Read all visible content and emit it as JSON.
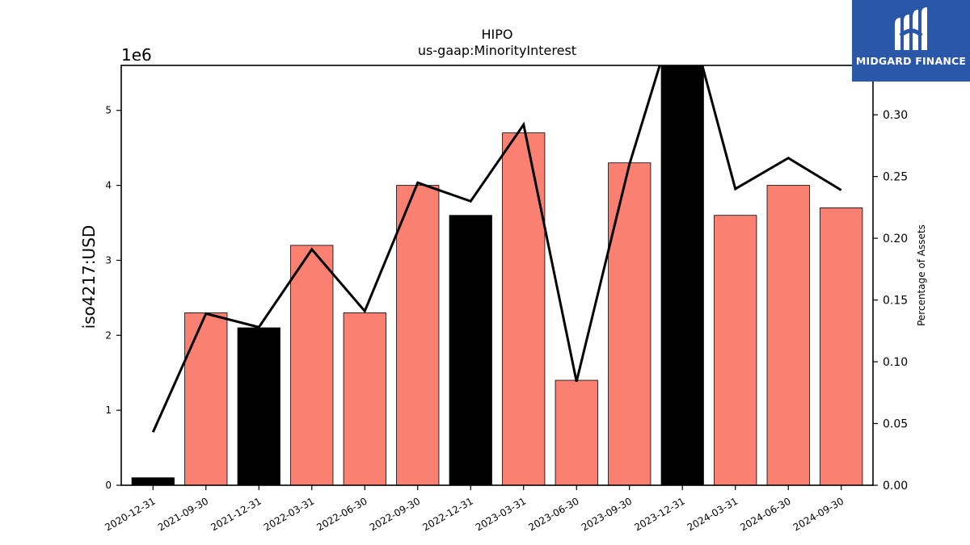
{
  "chart_data": {
    "type": "bar",
    "title": "HIPO",
    "subtitle": "us-gaap:MinorityInterest",
    "ylabel": "iso4217:USD",
    "y2label": "Percentage of Assets",
    "yscale_label": "1e6",
    "ylim": [
      0,
      5600000
    ],
    "y2lim": [
      0,
      0.34
    ],
    "yticks": [
      0,
      1,
      2,
      3,
      4,
      5
    ],
    "y2ticks": [
      "0.00",
      "0.05",
      "0.10",
      "0.15",
      "0.20",
      "0.25",
      "0.30"
    ],
    "categories": [
      "2020-12-31",
      "2021-09-30",
      "2021-12-31",
      "2022-03-31",
      "2022-06-30",
      "2022-09-30",
      "2022-12-31",
      "2023-03-31",
      "2023-06-30",
      "2023-09-30",
      "2023-12-31",
      "2024-03-31",
      "2024-06-30",
      "2024-09-30"
    ],
    "series": [
      {
        "values": [
          100000,
          2300000,
          2100000,
          3200000,
          2300000,
          4000000,
          3600000,
          4700000,
          1400000,
          4300000,
          5600000,
          3600000,
          4000000,
          3700000
        ],
        "colors": [
          "#000000",
          "#fa8072",
          "#000000",
          "#fa8072",
          "#fa8072",
          "#fa8072",
          "#000000",
          "#fa8072",
          "#fa8072",
          "#fa8072",
          "#000000",
          "#fa8072",
          "#fa8072",
          "#fa8072"
        ]
      },
      {
        "type": "line",
        "axis": "right",
        "values": [
          0.043,
          0.139,
          0.128,
          0.191,
          0.141,
          0.245,
          0.23,
          0.292,
          0.084,
          0.26,
          0.4,
          0.24,
          0.265,
          0.239
        ]
      }
    ],
    "grid": false,
    "legend": "none"
  },
  "logo": {
    "text": "MIDGARD FINANCE",
    "mark_icon": "midgard-logo-icon",
    "background": "#2b57a8"
  }
}
